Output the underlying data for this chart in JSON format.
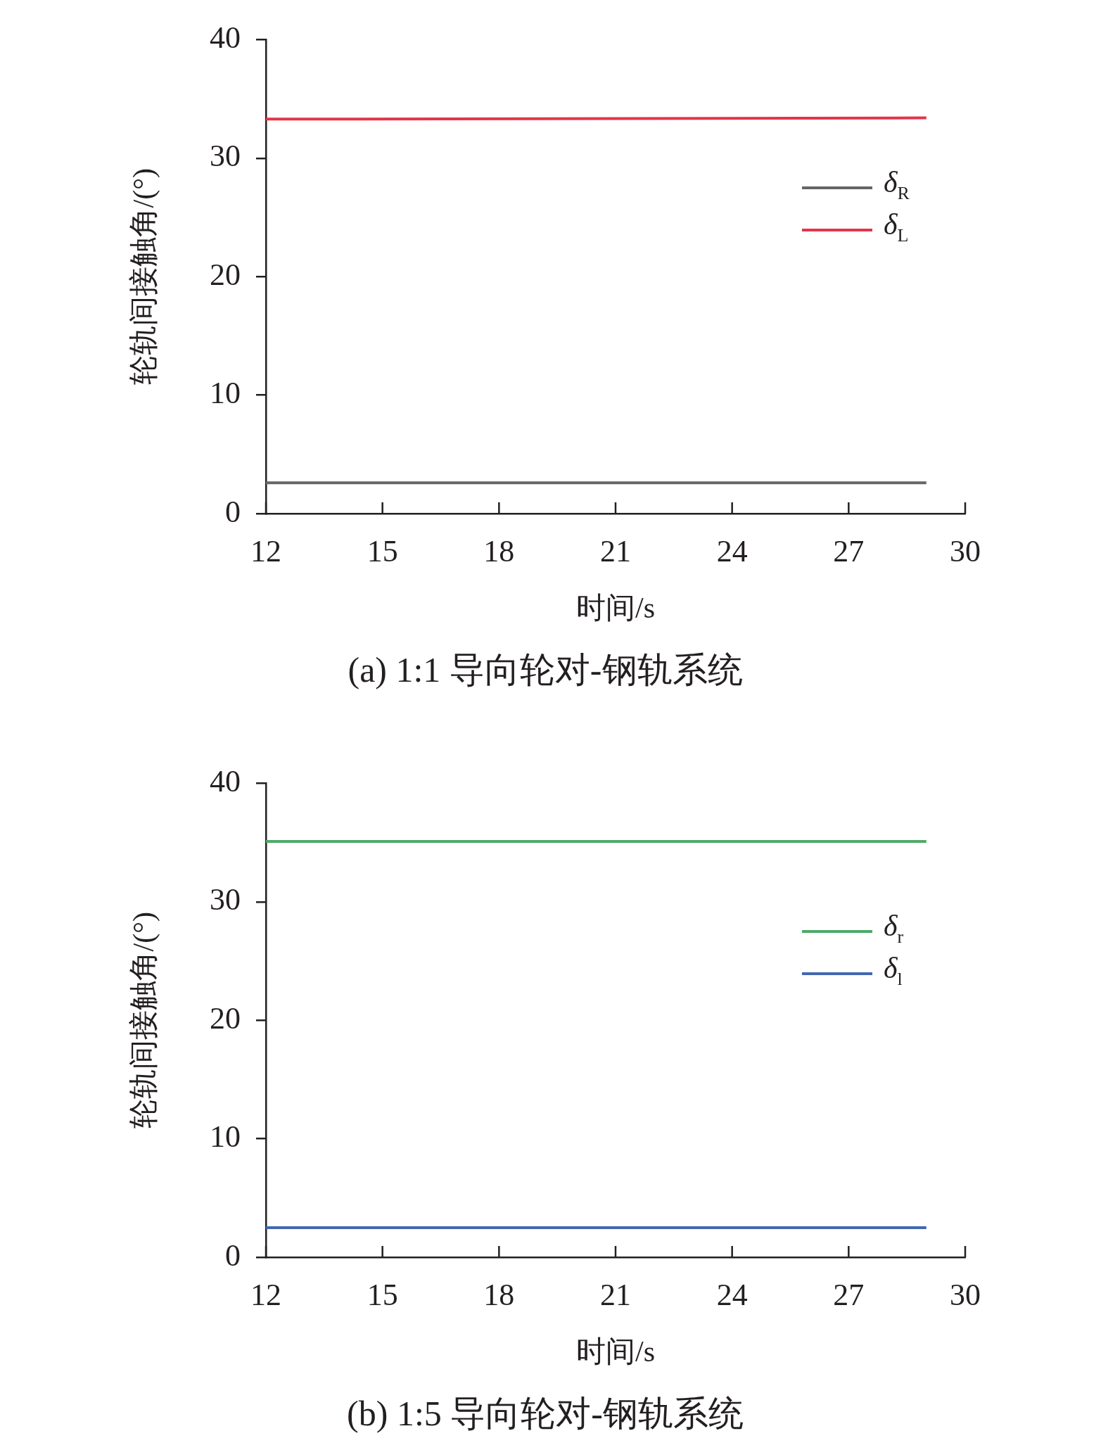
{
  "chart_data": [
    {
      "type": "line",
      "title": "(a) 1:1 导向轮对-钢轨系统",
      "xlabel": "时间/s",
      "ylabel": "轮轨间接触角/(°)",
      "xlim": [
        12,
        30
      ],
      "xticks": [
        12,
        15,
        18,
        21,
        24,
        27,
        30
      ],
      "ylim": [
        0,
        40
      ],
      "yticks": [
        0,
        10,
        20,
        30,
        40
      ],
      "grid": false,
      "legend": "top right",
      "marker": "none",
      "line_style": "solid",
      "series": [
        {
          "name": "δ$_{R}$",
          "color": "#666666",
          "x": [
            12,
            29
          ],
          "values": [
            2.6,
            2.6
          ]
        },
        {
          "name": "δ$_{L}$",
          "color": "#e2354a",
          "x": [
            12,
            14,
            29
          ],
          "values": [
            33.3,
            33.3,
            33.4
          ]
        }
      ]
    },
    {
      "type": "line",
      "title": "(b) 1:5 导向轮对-钢轨系统",
      "xlabel": "时间/s",
      "ylabel": "轮轨间接触角/(°)",
      "xlim": [
        12,
        30
      ],
      "xticks": [
        12,
        15,
        18,
        21,
        24,
        27,
        30
      ],
      "ylim": [
        0,
        40
      ],
      "yticks": [
        0,
        10,
        20,
        30,
        40
      ],
      "grid": false,
      "legend": "top right",
      "marker": "none",
      "line_style": "solid",
      "series": [
        {
          "name": "δ$_{r}$",
          "color": "#4dab68",
          "x": [
            12,
            29
          ],
          "values": [
            35.1,
            35.1
          ]
        },
        {
          "name": "δ$_{l}$",
          "color": "#4267b2",
          "x": [
            12,
            29
          ],
          "values": [
            2.5,
            2.5
          ]
        }
      ]
    }
  ]
}
